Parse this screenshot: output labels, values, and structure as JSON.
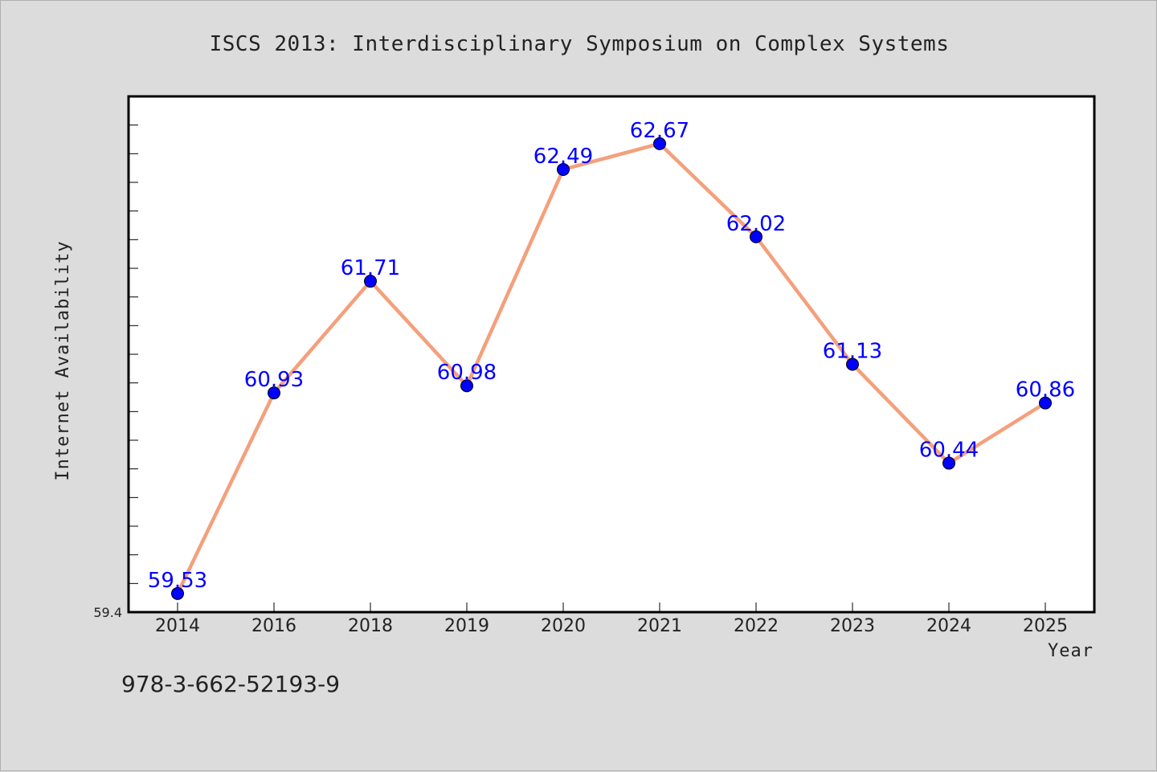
{
  "chart_data": {
    "type": "line",
    "title": "ISCS 2013: Interdisciplinary Symposium on Complex Systems",
    "xlabel": "Year",
    "ylabel": "Internet Availability",
    "categories": [
      "2014",
      "2016",
      "2018",
      "2019",
      "2020",
      "2021",
      "2022",
      "2023",
      "2024",
      "2025"
    ],
    "series": [
      {
        "values": [
          59.53,
          60.93,
          61.71,
          60.98,
          62.49,
          62.67,
          62.02,
          61.13,
          60.44,
          60.86
        ],
        "labels": [
          "59.53",
          "60.93",
          "61.71",
          "60.98",
          "62.49",
          "62.67",
          "62.02",
          "61.13",
          "60.44",
          "60.86"
        ]
      }
    ],
    "y_tick_labels": [
      "59.4"
    ],
    "ylim": [
      59.4,
      63.0
    ],
    "grid": false,
    "line_color": "#f4a07c",
    "marker_color": "#0000ff",
    "label_color": "#0000ff"
  },
  "footer": {
    "isbn": "978-3-662-52193-9"
  }
}
